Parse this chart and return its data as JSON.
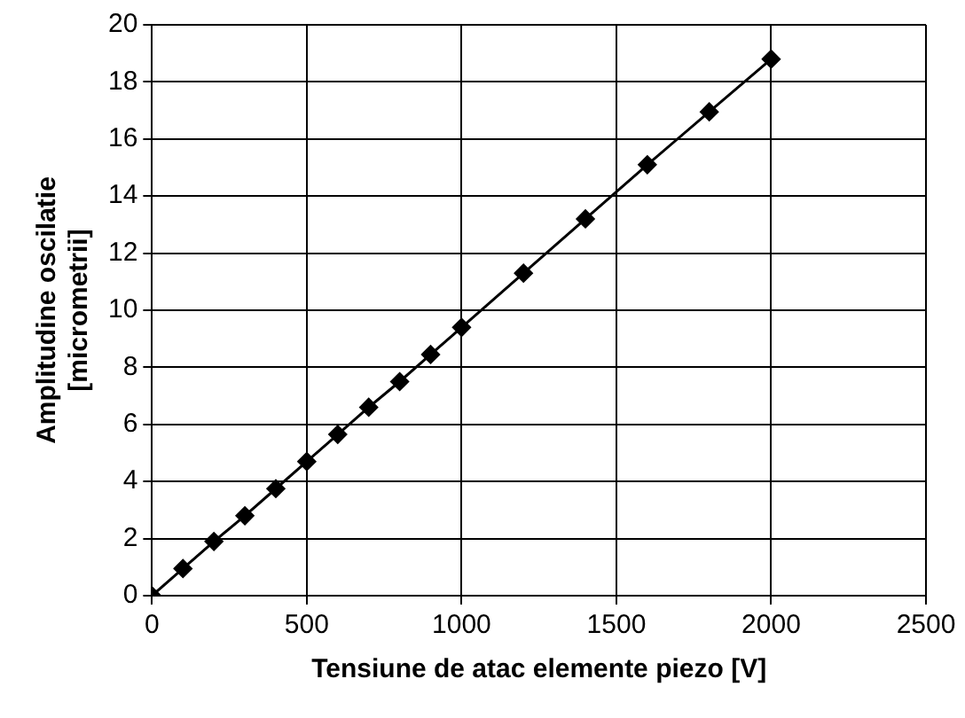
{
  "chart_data": {
    "type": "line",
    "xlabel": "Tensiune de atac elemente piezo [V]",
    "ylabel": "Amplitudine oscilatie [micrometrii]",
    "x": [
      0,
      100,
      200,
      300,
      400,
      500,
      600,
      700,
      800,
      900,
      1000,
      1200,
      1400,
      1600,
      1800,
      2000
    ],
    "series": [
      {
        "color": "#000000",
        "values": [
          0,
          0.95,
          1.9,
          2.8,
          3.75,
          4.7,
          5.65,
          6.6,
          7.5,
          8.45,
          9.4,
          11.3,
          13.2,
          15.1,
          16.95,
          18.8
        ]
      }
    ],
    "xlim": [
      0,
      2500
    ],
    "xticks": [
      0,
      500,
      1000,
      1500,
      2000,
      2500
    ],
    "ylim": [
      0,
      20
    ],
    "yticks": [
      0,
      2,
      4,
      6,
      8,
      10,
      12,
      14,
      16,
      18,
      20
    ],
    "grid": true,
    "legend": false,
    "marker": "diamond",
    "line_style": "solid"
  }
}
